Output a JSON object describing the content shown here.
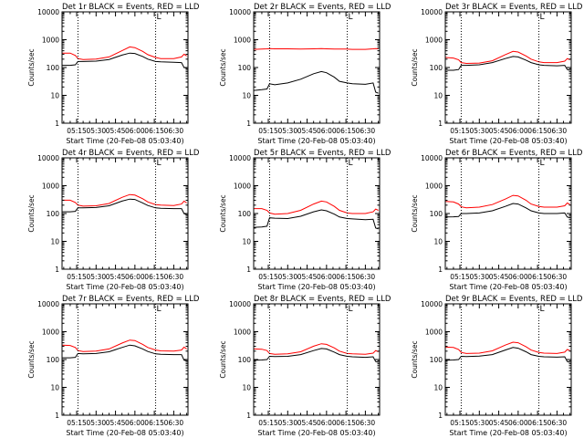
{
  "colors": {
    "events": "#000000",
    "lld": "#ff0000",
    "frame": "#000000",
    "background": "#ffffff"
  },
  "shared_axes": {
    "ylabel": "Counts/sec",
    "xlabel": "Start Time (20-Feb-08 05:03:40)",
    "y_scale": "log",
    "ylim": [
      1,
      10000
    ],
    "y_ticks": [
      "1",
      "10",
      "100",
      "1000",
      "10000"
    ],
    "x_ticks": [
      "05:15",
      "05:30",
      "05:45",
      "06:00",
      "06:15",
      "06:30"
    ],
    "x_unit": "minutes after 05:00",
    "x_tick_values": [
      15,
      30,
      45,
      60,
      75,
      90
    ],
    "xlim": [
      3.7,
      101
    ],
    "vlines": [
      16,
      76
    ],
    "top_marker": "L"
  },
  "chart_data": [
    {
      "type": "line",
      "title": "Det 1r BLACK = Events, RED = LLD",
      "x": [
        4,
        10,
        14,
        16,
        20,
        30,
        40,
        50,
        56,
        60,
        66,
        70,
        76,
        80,
        90,
        96,
        98,
        100
      ],
      "series": [
        {
          "name": "Events",
          "color": "#000000",
          "values": [
            120,
            120,
            125,
            165,
            165,
            170,
            195,
            280,
            330,
            320,
            250,
            200,
            165,
            160,
            155,
            150,
            100,
            95
          ]
        },
        {
          "name": "LLD",
          "color": "#ff0000",
          "values": [
            330,
            330,
            270,
            210,
            195,
            200,
            240,
            400,
            550,
            520,
            380,
            290,
            230,
            210,
            210,
            240,
            300,
            260
          ]
        }
      ]
    },
    {
      "type": "line",
      "title": "Det 2r BLACK = Events, RED = LLD",
      "x": [
        4,
        10,
        14,
        16,
        20,
        30,
        40,
        50,
        56,
        60,
        66,
        70,
        76,
        80,
        90,
        96,
        98,
        100
      ],
      "series": [
        {
          "name": "Events",
          "color": "#000000",
          "values": [
            15,
            16,
            17,
            26,
            24,
            28,
            38,
            60,
            72,
            65,
            45,
            32,
            28,
            26,
            25,
            28,
            13,
            12
          ]
        },
        {
          "name": "LLD",
          "color": "#ff0000",
          "values": [
            450,
            460,
            470,
            480,
            470,
            470,
            460,
            470,
            480,
            470,
            460,
            460,
            460,
            450,
            450,
            470,
            480,
            470
          ]
        }
      ]
    },
    {
      "type": "line",
      "title": "Det 3r BLACK = Events, RED = LLD",
      "x": [
        4,
        10,
        14,
        16,
        20,
        30,
        40,
        50,
        56,
        60,
        66,
        70,
        76,
        80,
        90,
        96,
        98,
        100
      ],
      "series": [
        {
          "name": "Events",
          "color": "#000000",
          "values": [
            80,
            80,
            85,
            120,
            120,
            125,
            150,
            210,
            250,
            240,
            185,
            150,
            125,
            120,
            115,
            120,
            85,
            80
          ]
        },
        {
          "name": "LLD",
          "color": "#ff0000",
          "values": [
            230,
            220,
            190,
            150,
            140,
            145,
            175,
            290,
            380,
            360,
            260,
            200,
            160,
            150,
            150,
            170,
            210,
            190
          ]
        }
      ]
    },
    {
      "type": "line",
      "title": "Det 4r BLACK = Events, RED = LLD",
      "x": [
        4,
        10,
        14,
        16,
        20,
        30,
        40,
        50,
        56,
        60,
        66,
        70,
        76,
        80,
        90,
        96,
        98,
        100
      ],
      "series": [
        {
          "name": "Events",
          "color": "#000000",
          "values": [
            115,
            115,
            120,
            160,
            160,
            165,
            190,
            280,
            330,
            320,
            240,
            195,
            160,
            155,
            150,
            150,
            100,
            90
          ]
        },
        {
          "name": "LLD",
          "color": "#ff0000",
          "values": [
            300,
            300,
            250,
            200,
            185,
            190,
            230,
            380,
            480,
            460,
            340,
            260,
            210,
            200,
            195,
            220,
            280,
            240
          ]
        }
      ]
    },
    {
      "type": "line",
      "title": "Det 5r BLACK = Events, RED = LLD",
      "x": [
        4,
        10,
        14,
        16,
        20,
        30,
        40,
        50,
        56,
        60,
        66,
        70,
        76,
        80,
        90,
        96,
        98,
        100
      ],
      "series": [
        {
          "name": "Events",
          "color": "#000000",
          "values": [
            32,
            33,
            35,
            70,
            68,
            66,
            80,
            115,
            135,
            125,
            95,
            75,
            66,
            64,
            60,
            62,
            30,
            28
          ]
        },
        {
          "name": "LLD",
          "color": "#ff0000",
          "values": [
            150,
            150,
            130,
            105,
            95,
            100,
            130,
            220,
            280,
            260,
            180,
            130,
            105,
            100,
            100,
            115,
            145,
            130
          ]
        }
      ]
    },
    {
      "type": "line",
      "title": "Det 6r BLACK = Events, RED = LLD",
      "x": [
        4,
        10,
        14,
        16,
        20,
        30,
        40,
        50,
        56,
        60,
        66,
        70,
        76,
        80,
        90,
        96,
        98,
        100
      ],
      "series": [
        {
          "name": "Events",
          "color": "#000000",
          "values": [
            75,
            76,
            78,
            100,
            100,
            105,
            125,
            180,
            230,
            220,
            160,
            125,
            105,
            100,
            100,
            105,
            75,
            70
          ]
        },
        {
          "name": "LLD",
          "color": "#ff0000",
          "values": [
            270,
            260,
            220,
            175,
            160,
            170,
            210,
            330,
            450,
            430,
            300,
            220,
            180,
            170,
            170,
            190,
            240,
            210
          ]
        }
      ]
    },
    {
      "type": "line",
      "title": "Det 7r BLACK = Events, RED = LLD",
      "x": [
        4,
        10,
        14,
        16,
        20,
        30,
        40,
        50,
        56,
        60,
        66,
        70,
        76,
        80,
        90,
        96,
        98,
        100
      ],
      "series": [
        {
          "name": "Events",
          "color": "#000000",
          "values": [
            115,
            115,
            120,
            165,
            160,
            165,
            190,
            270,
            330,
            310,
            240,
            195,
            160,
            155,
            150,
            150,
            95,
            90
          ]
        },
        {
          "name": "LLD",
          "color": "#ff0000",
          "values": [
            330,
            320,
            270,
            210,
            195,
            200,
            240,
            390,
            500,
            480,
            350,
            270,
            220,
            205,
            200,
            220,
            280,
            240
          ]
        }
      ]
    },
    {
      "type": "line",
      "title": "Det 8r BLACK = Events, RED = LLD",
      "x": [
        4,
        10,
        14,
        16,
        20,
        30,
        40,
        50,
        56,
        60,
        66,
        70,
        76,
        80,
        90,
        96,
        98,
        100
      ],
      "series": [
        {
          "name": "Events",
          "color": "#000000",
          "values": [
            95,
            96,
            100,
            130,
            128,
            130,
            150,
            210,
            250,
            240,
            185,
            150,
            130,
            125,
            120,
            125,
            85,
            80
          ]
        },
        {
          "name": "LLD",
          "color": "#ff0000",
          "values": [
            240,
            235,
            210,
            165,
            155,
            160,
            190,
            300,
            370,
            350,
            260,
            200,
            165,
            160,
            155,
            170,
            210,
            190
          ]
        }
      ]
    },
    {
      "type": "line",
      "title": "Det 9r BLACK = Events, RED = LLD",
      "x": [
        4,
        10,
        14,
        16,
        20,
        30,
        40,
        50,
        56,
        60,
        66,
        70,
        76,
        80,
        90,
        96,
        98,
        100
      ],
      "series": [
        {
          "name": "Events",
          "color": "#000000",
          "values": [
            95,
            96,
            100,
            130,
            128,
            132,
            150,
            220,
            270,
            255,
            190,
            150,
            130,
            125,
            122,
            125,
            85,
            80
          ]
        },
        {
          "name": "LLD",
          "color": "#ff0000",
          "values": [
            280,
            270,
            230,
            180,
            165,
            170,
            205,
            330,
            420,
            400,
            290,
            220,
            180,
            170,
            165,
            185,
            230,
            210
          ]
        }
      ]
    }
  ]
}
